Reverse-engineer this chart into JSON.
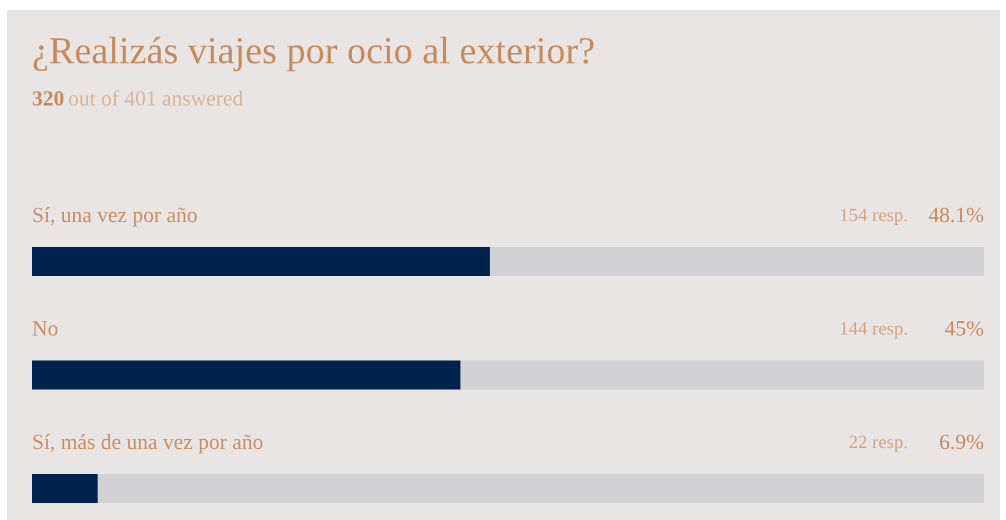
{
  "chart_data": {
    "type": "bar",
    "orientation": "horizontal",
    "title": "¿Realizás viajes por ocio al exterior?",
    "subtitle": "320 out of 401 answered",
    "categories": [
      "Sí, una vez por año",
      "No",
      "Sí, más de una vez por año"
    ],
    "values": [
      48.1,
      45,
      6.9
    ],
    "value_labels": [
      "48.1%",
      "45%",
      "6.9%"
    ],
    "color": "#00224f",
    "xlim": [
      0,
      100
    ],
    "tick_labels": "y",
    "annotations": [
      "154 resp.",
      "144 resp.",
      "22 resp."
    ]
  }
}
